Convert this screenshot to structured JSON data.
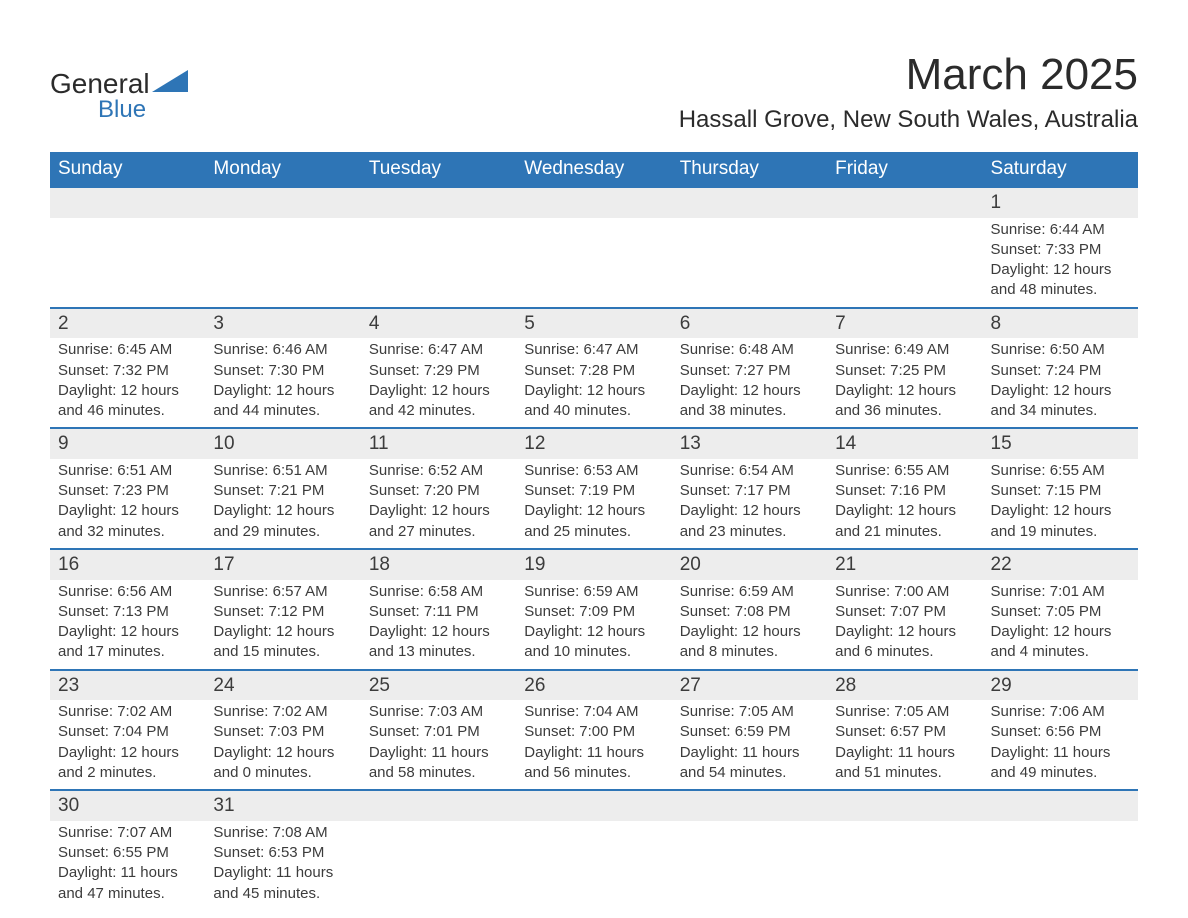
{
  "brand": {
    "name1": "General",
    "name2": "Blue"
  },
  "title": "March 2025",
  "location": "Hassall Grove, New South Wales, Australia",
  "colors": {
    "header_bg": "#2e75b6",
    "header_fg": "#ffffff",
    "row_divider": "#2e75b6",
    "daynum_bg": "#ededed",
    "text": "#3c3c3c",
    "page_bg": "#ffffff"
  },
  "typography": {
    "month_title_size": 44,
    "location_size": 24,
    "weekday_size": 19,
    "daynum_size": 19,
    "body_size": 15
  },
  "weekdays": [
    "Sunday",
    "Monday",
    "Tuesday",
    "Wednesday",
    "Thursday",
    "Friday",
    "Saturday"
  ],
  "weeks": [
    [
      null,
      null,
      null,
      null,
      null,
      null,
      {
        "n": "1",
        "sunrise": "Sunrise: 6:44 AM",
        "sunset": "Sunset: 7:33 PM",
        "daylight": "Daylight: 12 hours and 48 minutes."
      }
    ],
    [
      {
        "n": "2",
        "sunrise": "Sunrise: 6:45 AM",
        "sunset": "Sunset: 7:32 PM",
        "daylight": "Daylight: 12 hours and 46 minutes."
      },
      {
        "n": "3",
        "sunrise": "Sunrise: 6:46 AM",
        "sunset": "Sunset: 7:30 PM",
        "daylight": "Daylight: 12 hours and 44 minutes."
      },
      {
        "n": "4",
        "sunrise": "Sunrise: 6:47 AM",
        "sunset": "Sunset: 7:29 PM",
        "daylight": "Daylight: 12 hours and 42 minutes."
      },
      {
        "n": "5",
        "sunrise": "Sunrise: 6:47 AM",
        "sunset": "Sunset: 7:28 PM",
        "daylight": "Daylight: 12 hours and 40 minutes."
      },
      {
        "n": "6",
        "sunrise": "Sunrise: 6:48 AM",
        "sunset": "Sunset: 7:27 PM",
        "daylight": "Daylight: 12 hours and 38 minutes."
      },
      {
        "n": "7",
        "sunrise": "Sunrise: 6:49 AM",
        "sunset": "Sunset: 7:25 PM",
        "daylight": "Daylight: 12 hours and 36 minutes."
      },
      {
        "n": "8",
        "sunrise": "Sunrise: 6:50 AM",
        "sunset": "Sunset: 7:24 PM",
        "daylight": "Daylight: 12 hours and 34 minutes."
      }
    ],
    [
      {
        "n": "9",
        "sunrise": "Sunrise: 6:51 AM",
        "sunset": "Sunset: 7:23 PM",
        "daylight": "Daylight: 12 hours and 32 minutes."
      },
      {
        "n": "10",
        "sunrise": "Sunrise: 6:51 AM",
        "sunset": "Sunset: 7:21 PM",
        "daylight": "Daylight: 12 hours and 29 minutes."
      },
      {
        "n": "11",
        "sunrise": "Sunrise: 6:52 AM",
        "sunset": "Sunset: 7:20 PM",
        "daylight": "Daylight: 12 hours and 27 minutes."
      },
      {
        "n": "12",
        "sunrise": "Sunrise: 6:53 AM",
        "sunset": "Sunset: 7:19 PM",
        "daylight": "Daylight: 12 hours and 25 minutes."
      },
      {
        "n": "13",
        "sunrise": "Sunrise: 6:54 AM",
        "sunset": "Sunset: 7:17 PM",
        "daylight": "Daylight: 12 hours and 23 minutes."
      },
      {
        "n": "14",
        "sunrise": "Sunrise: 6:55 AM",
        "sunset": "Sunset: 7:16 PM",
        "daylight": "Daylight: 12 hours and 21 minutes."
      },
      {
        "n": "15",
        "sunrise": "Sunrise: 6:55 AM",
        "sunset": "Sunset: 7:15 PM",
        "daylight": "Daylight: 12 hours and 19 minutes."
      }
    ],
    [
      {
        "n": "16",
        "sunrise": "Sunrise: 6:56 AM",
        "sunset": "Sunset: 7:13 PM",
        "daylight": "Daylight: 12 hours and 17 minutes."
      },
      {
        "n": "17",
        "sunrise": "Sunrise: 6:57 AM",
        "sunset": "Sunset: 7:12 PM",
        "daylight": "Daylight: 12 hours and 15 minutes."
      },
      {
        "n": "18",
        "sunrise": "Sunrise: 6:58 AM",
        "sunset": "Sunset: 7:11 PM",
        "daylight": "Daylight: 12 hours and 13 minutes."
      },
      {
        "n": "19",
        "sunrise": "Sunrise: 6:59 AM",
        "sunset": "Sunset: 7:09 PM",
        "daylight": "Daylight: 12 hours and 10 minutes."
      },
      {
        "n": "20",
        "sunrise": "Sunrise: 6:59 AM",
        "sunset": "Sunset: 7:08 PM",
        "daylight": "Daylight: 12 hours and 8 minutes."
      },
      {
        "n": "21",
        "sunrise": "Sunrise: 7:00 AM",
        "sunset": "Sunset: 7:07 PM",
        "daylight": "Daylight: 12 hours and 6 minutes."
      },
      {
        "n": "22",
        "sunrise": "Sunrise: 7:01 AM",
        "sunset": "Sunset: 7:05 PM",
        "daylight": "Daylight: 12 hours and 4 minutes."
      }
    ],
    [
      {
        "n": "23",
        "sunrise": "Sunrise: 7:02 AM",
        "sunset": "Sunset: 7:04 PM",
        "daylight": "Daylight: 12 hours and 2 minutes."
      },
      {
        "n": "24",
        "sunrise": "Sunrise: 7:02 AM",
        "sunset": "Sunset: 7:03 PM",
        "daylight": "Daylight: 12 hours and 0 minutes."
      },
      {
        "n": "25",
        "sunrise": "Sunrise: 7:03 AM",
        "sunset": "Sunset: 7:01 PM",
        "daylight": "Daylight: 11 hours and 58 minutes."
      },
      {
        "n": "26",
        "sunrise": "Sunrise: 7:04 AM",
        "sunset": "Sunset: 7:00 PM",
        "daylight": "Daylight: 11 hours and 56 minutes."
      },
      {
        "n": "27",
        "sunrise": "Sunrise: 7:05 AM",
        "sunset": "Sunset: 6:59 PM",
        "daylight": "Daylight: 11 hours and 54 minutes."
      },
      {
        "n": "28",
        "sunrise": "Sunrise: 7:05 AM",
        "sunset": "Sunset: 6:57 PM",
        "daylight": "Daylight: 11 hours and 51 minutes."
      },
      {
        "n": "29",
        "sunrise": "Sunrise: 7:06 AM",
        "sunset": "Sunset: 6:56 PM",
        "daylight": "Daylight: 11 hours and 49 minutes."
      }
    ],
    [
      {
        "n": "30",
        "sunrise": "Sunrise: 7:07 AM",
        "sunset": "Sunset: 6:55 PM",
        "daylight": "Daylight: 11 hours and 47 minutes."
      },
      {
        "n": "31",
        "sunrise": "Sunrise: 7:08 AM",
        "sunset": "Sunset: 6:53 PM",
        "daylight": "Daylight: 11 hours and 45 minutes."
      },
      null,
      null,
      null,
      null,
      null
    ]
  ]
}
